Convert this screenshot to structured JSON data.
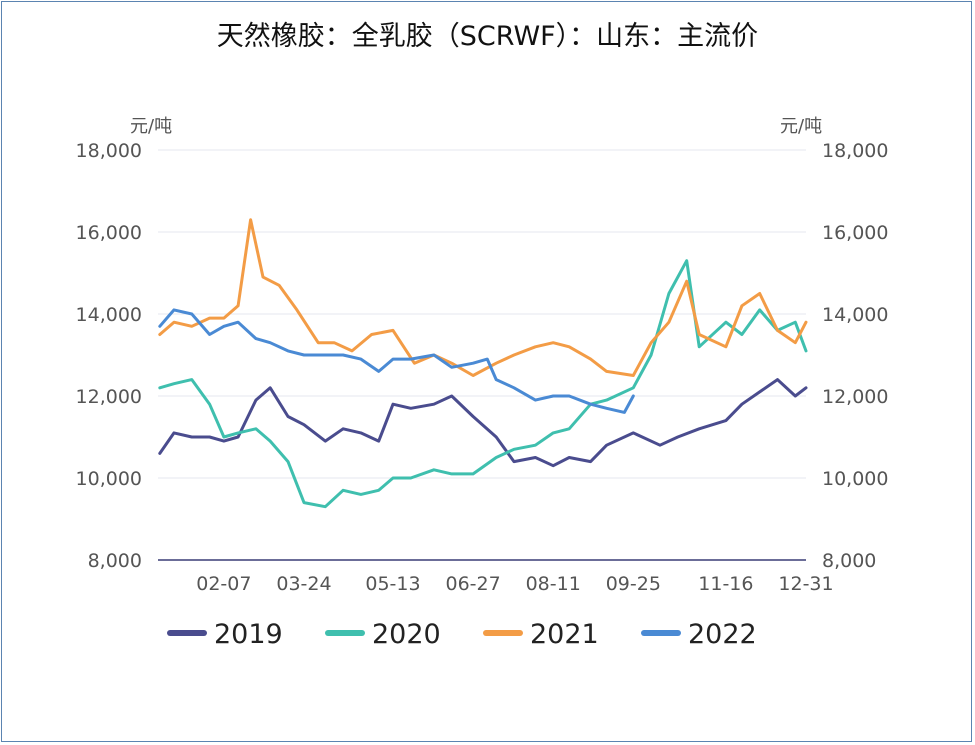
{
  "chart_data": {
    "type": "line",
    "title": "天然橡胶：全乳胶（SCRWF）：山东：主流价",
    "y_unit": "元/吨",
    "ylim": [
      8000,
      18000
    ],
    "y_ticks": [
      "18,000",
      "16,000",
      "14,000",
      "12,000",
      "10,000",
      "8,000"
    ],
    "x_ticks": [
      "02-07",
      "03-24",
      "05-13",
      "06-27",
      "08-11",
      "09-25",
      "11-16",
      "12-31"
    ],
    "grid": true,
    "legend_position": "bottom",
    "series": [
      {
        "name": "2019",
        "color": "#4a4c8e",
        "x": [
          "01-02",
          "01-10",
          "01-20",
          "01-30",
          "02-07",
          "02-15",
          "02-25",
          "03-05",
          "03-15",
          "03-24",
          "04-05",
          "04-15",
          "04-25",
          "05-05",
          "05-13",
          "05-23",
          "06-05",
          "06-15",
          "06-27",
          "07-10",
          "07-20",
          "08-01",
          "08-11",
          "08-20",
          "09-01",
          "09-10",
          "09-25",
          "10-10",
          "10-20",
          "11-01",
          "11-16",
          "11-25",
          "12-05",
          "12-15",
          "12-25",
          "12-31"
        ],
        "values": [
          10600,
          11100,
          11000,
          11000,
          10900,
          11000,
          11900,
          12200,
          11500,
          11300,
          10900,
          11200,
          11100,
          10900,
          11800,
          11700,
          11800,
          12000,
          11500,
          11000,
          10400,
          10500,
          10300,
          10500,
          10400,
          10800,
          11100,
          10800,
          11000,
          11200,
          11400,
          11800,
          12100,
          12400,
          12000,
          12200
        ]
      },
      {
        "name": "2020",
        "color": "#3fbfae",
        "x": [
          "01-02",
          "01-10",
          "01-20",
          "01-30",
          "02-07",
          "02-15",
          "02-25",
          "03-05",
          "03-15",
          "03-24",
          "04-05",
          "04-15",
          "04-25",
          "05-05",
          "05-13",
          "05-23",
          "06-05",
          "06-15",
          "06-27",
          "07-10",
          "07-20",
          "08-01",
          "08-11",
          "08-20",
          "09-01",
          "09-10",
          "09-25",
          "10-05",
          "10-15",
          "10-25",
          "11-01",
          "11-16",
          "11-25",
          "12-05",
          "12-15",
          "12-25",
          "12-31"
        ],
        "values": [
          12200,
          12300,
          12400,
          11800,
          11000,
          11100,
          11200,
          10900,
          10400,
          9400,
          9300,
          9700,
          9600,
          9700,
          10000,
          10000,
          10200,
          10100,
          10100,
          10500,
          10700,
          10800,
          11100,
          11200,
          11800,
          11900,
          12200,
          13000,
          14500,
          15300,
          13200,
          13800,
          13500,
          14100,
          13600,
          13800,
          13100
        ]
      },
      {
        "name": "2021",
        "color": "#f39c46",
        "x": [
          "01-02",
          "01-10",
          "01-20",
          "01-30",
          "02-07",
          "02-15",
          "02-22",
          "03-01",
          "03-10",
          "03-20",
          "04-01",
          "04-10",
          "04-20",
          "05-01",
          "05-13",
          "05-25",
          "06-05",
          "06-15",
          "06-27",
          "07-10",
          "07-20",
          "08-01",
          "08-11",
          "08-20",
          "09-01",
          "09-10",
          "09-25",
          "10-05",
          "10-15",
          "10-25",
          "11-01",
          "11-16",
          "11-25",
          "12-05",
          "12-15",
          "12-25",
          "12-31"
        ],
        "values": [
          13500,
          13800,
          13700,
          13900,
          13900,
          14200,
          16300,
          14900,
          14700,
          14100,
          13300,
          13300,
          13100,
          13500,
          13600,
          12800,
          13000,
          12800,
          12500,
          12800,
          13000,
          13200,
          13300,
          13200,
          12900,
          12600,
          12500,
          13300,
          13800,
          14800,
          13500,
          13200,
          14200,
          14500,
          13600,
          13300,
          13800
        ]
      },
      {
        "name": "2022",
        "color": "#4a8ad4",
        "x": [
          "01-02",
          "01-10",
          "01-20",
          "01-30",
          "02-07",
          "02-15",
          "02-25",
          "03-05",
          "03-15",
          "03-24",
          "04-05",
          "04-15",
          "04-25",
          "05-05",
          "05-13",
          "05-23",
          "06-05",
          "06-15",
          "06-27",
          "07-05",
          "07-10",
          "07-20",
          "08-01",
          "08-11",
          "08-20",
          "09-01",
          "09-10",
          "09-20",
          "09-25"
        ],
        "values": [
          13700,
          14100,
          14000,
          13500,
          13700,
          13800,
          13400,
          13300,
          13100,
          13000,
          13000,
          13000,
          12900,
          12600,
          12900,
          12900,
          13000,
          12700,
          12800,
          12900,
          12400,
          12200,
          11900,
          12000,
          12000,
          11800,
          11700,
          11600,
          12000
        ]
      }
    ]
  }
}
